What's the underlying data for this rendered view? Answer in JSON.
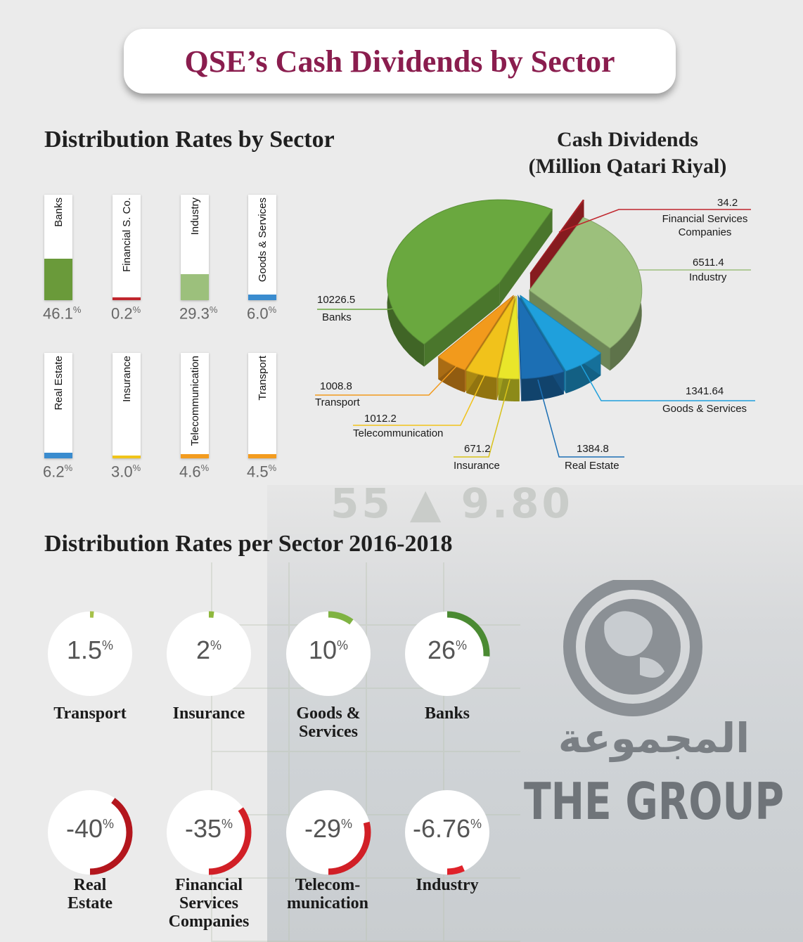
{
  "title": "QSE’s Cash Dividends by Sector",
  "bars_heading": "Distribution Rates by Sector",
  "pie_heading": [
    "Cash Dividends",
    "(Million Qatari Riyal)"
  ],
  "donuts_heading": "Distribution Rates per Sector 2016-2018",
  "ticker_text": "55 ▲ 9.80",
  "logo_text": "THE GROUP",
  "logo_arabic": "المجموعة",
  "colors": {
    "green": "#6a9a3a",
    "red": "#c0262d",
    "light_green": "#9cc07c",
    "blue": "#3a8ccf",
    "yellow": "#f0c419",
    "orange": "#f39c1f"
  },
  "chart_data": [
    {
      "type": "bar",
      "title": "Distribution Rates by Sector",
      "categories": [
        "Banks",
        "Financial S. Co.",
        "Industry",
        "Goods & Services",
        "Real Estate",
        "Insurance",
        "Telecommunication",
        "Transport"
      ],
      "values": [
        46.1,
        0.2,
        29.3,
        6.0,
        6.2,
        3.0,
        4.6,
        4.5
      ],
      "labels": [
        "46.1",
        "0.2",
        "29.3",
        "6.0",
        "6.2",
        "3.0",
        "4.6",
        "4.5"
      ],
      "unit": "%",
      "colors": [
        "#6a9a3a",
        "#c0262d",
        "#9cc07c",
        "#3a8ccf",
        "#3a8ccf",
        "#f0c419",
        "#f39c1f",
        "#f39c1f"
      ]
    },
    {
      "type": "pie",
      "title": "Cash Dividends (Million Qatari Riyal)",
      "slices": [
        {
          "label": "Financial Services Companies",
          "value": 34.2,
          "value_label": "34.2",
          "color": "#c0262d"
        },
        {
          "label": "Industry",
          "value": 6511.4,
          "value_label": "6511.4",
          "color": "#9cc07c"
        },
        {
          "label": "Goods & Services",
          "value": 1341.64,
          "value_label": "1341.64",
          "color": "#1fa0dc"
        },
        {
          "label": "Real Estate",
          "value": 1384.8,
          "value_label": "1384.8",
          "color": "#1c6fb4"
        },
        {
          "label": "Insurance",
          "value": 671.2,
          "value_label": "671.2",
          "color": "#e9e62a"
        },
        {
          "label": "Telecommunication",
          "value": 1012.2,
          "value_label": "1012.2",
          "color": "#f1c21b"
        },
        {
          "label": "Transport",
          "value": 1008.8,
          "value_label": "1008.8",
          "color": "#f29a1c"
        },
        {
          "label": "Banks",
          "value": 10226.5,
          "value_label": "10226.5",
          "color": "#6aa83f"
        }
      ]
    },
    {
      "type": "donut",
      "title": "Distribution Rates per Sector 2016-2018",
      "items": [
        {
          "name": "Transport",
          "value": 1.5,
          "label": "1.5",
          "color": "#a6c14a"
        },
        {
          "name": "Insurance",
          "value": 2,
          "label": "2",
          "color": "#8fb83d"
        },
        {
          "name": "Goods & Services",
          "value": 10,
          "label": "10",
          "color": "#7fb342"
        },
        {
          "name": "Banks",
          "value": 26,
          "label": "26",
          "color": "#4a8a32"
        },
        {
          "name": "Real Estate",
          "value": -40,
          "label": "-40",
          "color": "#b3161d"
        },
        {
          "name": "Financial Services Companies",
          "value": -35,
          "label": "-35",
          "color": "#d11f26"
        },
        {
          "name": "Telecom-munication",
          "value": -29,
          "label": "-29",
          "color": "#d11f26"
        },
        {
          "name": "Industry",
          "value": -6.76,
          "label": "-6.76",
          "color": "#e0222a"
        }
      ],
      "unit": "%"
    }
  ]
}
